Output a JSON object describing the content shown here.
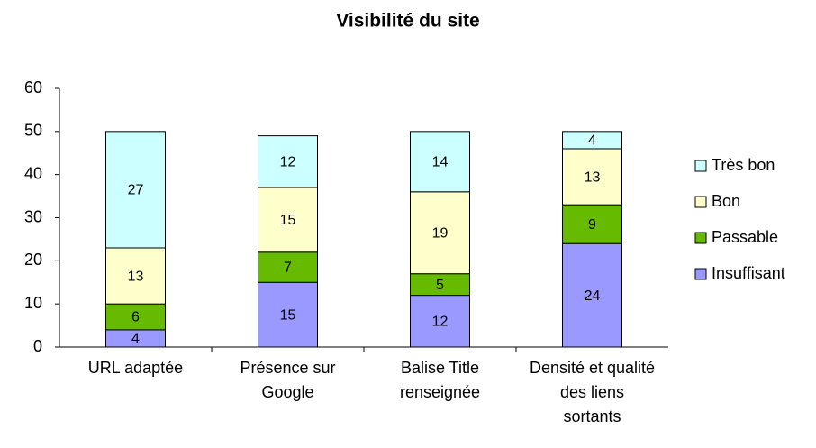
{
  "chart_data": {
    "type": "stacked_bar",
    "title": "Visibilité du site",
    "categories": [
      "URL adaptée",
      "Présence sur Google",
      "Balise Title renseignée",
      "Densité et qualité des liens sortants"
    ],
    "series": [
      {
        "name": "Insuffisant",
        "color": "#9999ff",
        "values": [
          4,
          15,
          12,
          24
        ]
      },
      {
        "name": "Passable",
        "color": "#66bb00",
        "values": [
          6,
          7,
          5,
          9
        ]
      },
      {
        "name": "Bon",
        "color": "#ffffcc",
        "values": [
          13,
          15,
          19,
          13
        ]
      },
      {
        "name": "Très bon",
        "color": "#ccffff",
        "values": [
          27,
          12,
          14,
          4
        ]
      }
    ],
    "ylim": [
      0,
      60
    ],
    "yticks": [
      0,
      10,
      20,
      30,
      40,
      50,
      60
    ],
    "grid": false,
    "legend": "right"
  }
}
